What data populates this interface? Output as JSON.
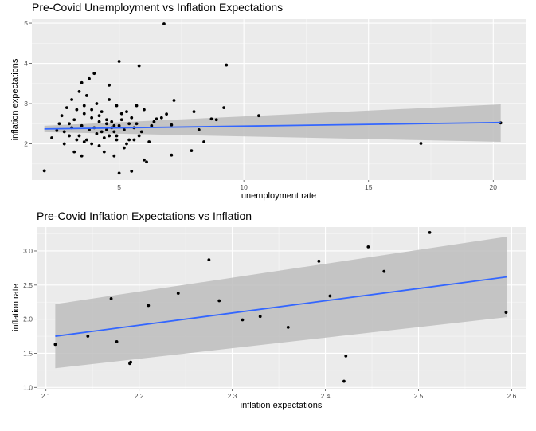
{
  "chart_data": [
    {
      "type": "scatter",
      "title": "Pre-Covid Unemployment vs Inflation Expectations",
      "xlabel": "unemployment rate",
      "ylabel": "inflation expectations",
      "xlim": [
        1.5,
        21.3
      ],
      "ylim": [
        1.1,
        5.1
      ],
      "xticks": [
        5,
        10,
        15,
        20
      ],
      "yticks": [
        2,
        3,
        4,
        5
      ],
      "grid": true,
      "background": "#ebebeb",
      "point_color": "#000000",
      "fit": {
        "method": "lm",
        "color": "#3366ff",
        "ci_color": "#bdbdbd",
        "x": [
          2.0,
          20.3
        ],
        "y": [
          2.37,
          2.53
        ],
        "ci_lower": [
          2.29,
          2.05
        ],
        "ci_upper": [
          2.45,
          2.98
        ]
      },
      "points": [
        [
          6.8,
          4.98
        ],
        [
          5.0,
          4.05
        ],
        [
          5.8,
          3.94
        ],
        [
          9.3,
          3.96
        ],
        [
          2.0,
          1.33
        ],
        [
          17.1,
          2.01
        ],
        [
          20.3,
          2.52
        ],
        [
          10.6,
          2.7
        ],
        [
          9.2,
          2.9
        ],
        [
          8.7,
          2.62
        ],
        [
          8.9,
          2.6
        ],
        [
          8.0,
          2.8
        ],
        [
          8.2,
          2.35
        ],
        [
          8.4,
          2.05
        ],
        [
          7.9,
          1.83
        ],
        [
          7.2,
          3.08
        ],
        [
          7.1,
          2.47
        ],
        [
          7.1,
          1.72
        ],
        [
          6.9,
          2.74
        ],
        [
          6.7,
          2.65
        ],
        [
          6.5,
          2.62
        ],
        [
          6.3,
          2.45
        ],
        [
          6.2,
          2.05
        ],
        [
          6.1,
          1.55
        ],
        [
          6.0,
          1.6
        ],
        [
          5.5,
          1.32
        ],
        [
          5.0,
          1.27
        ],
        [
          3.8,
          3.62
        ],
        [
          4.0,
          3.75
        ],
        [
          3.5,
          3.52
        ],
        [
          4.6,
          3.46
        ],
        [
          2.5,
          2.33
        ],
        [
          2.3,
          2.15
        ],
        [
          6.4,
          2.55
        ],
        [
          6.0,
          2.85
        ],
        [
          5.9,
          2.3
        ],
        [
          5.7,
          2.95
        ],
        [
          5.6,
          2.4
        ],
        [
          5.4,
          2.1
        ],
        [
          5.2,
          1.9
        ],
        [
          4.8,
          1.7
        ],
        [
          4.4,
          1.8
        ],
        [
          4.2,
          1.95
        ],
        [
          3.9,
          2.0
        ],
        [
          3.6,
          2.05
        ],
        [
          3.3,
          2.1
        ],
        [
          3.0,
          2.2
        ],
        [
          2.8,
          2.3
        ],
        [
          2.6,
          2.5
        ],
        [
          2.7,
          2.7
        ],
        [
          2.9,
          2.9
        ],
        [
          3.1,
          3.1
        ],
        [
          3.4,
          3.3
        ],
        [
          3.7,
          3.2
        ],
        [
          4.1,
          3.0
        ],
        [
          4.3,
          2.8
        ],
        [
          4.5,
          2.6
        ],
        [
          4.7,
          2.4
        ],
        [
          4.9,
          2.2
        ],
        [
          5.1,
          2.6
        ],
        [
          5.3,
          2.8
        ],
        [
          3.2,
          2.6
        ],
        [
          3.5,
          2.45
        ],
        [
          3.8,
          2.35
        ],
        [
          4.1,
          2.25
        ],
        [
          4.4,
          2.15
        ],
        [
          4.7,
          2.55
        ],
        [
          5.0,
          2.45
        ],
        [
          3.3,
          2.85
        ],
        [
          3.6,
          2.75
        ],
        [
          3.9,
          2.65
        ],
        [
          4.2,
          2.55
        ],
        [
          4.5,
          2.35
        ],
        [
          4.8,
          2.3
        ],
        [
          5.2,
          2.35
        ],
        [
          5.5,
          2.65
        ],
        [
          5.8,
          2.2
        ],
        [
          3.0,
          2.5
        ],
        [
          3.1,
          2.4
        ],
        [
          3.4,
          2.2
        ],
        [
          3.7,
          2.1
        ],
        [
          4.0,
          2.4
        ],
        [
          4.3,
          2.3
        ],
        [
          4.6,
          2.2
        ],
        [
          4.9,
          2.1
        ],
        [
          5.3,
          2.0
        ],
        [
          5.6,
          2.1
        ],
        [
          2.8,
          2.0
        ],
        [
          3.2,
          1.8
        ],
        [
          3.5,
          1.7
        ],
        [
          4.6,
          3.1
        ],
        [
          4.9,
          2.95
        ],
        [
          5.1,
          2.75
        ],
        [
          5.4,
          2.5
        ],
        [
          5.7,
          2.5
        ],
        [
          3.6,
          2.95
        ],
        [
          3.9,
          2.85
        ],
        [
          4.2,
          2.7
        ],
        [
          4.5,
          2.5
        ],
        [
          4.8,
          2.45
        ]
      ]
    },
    {
      "type": "scatter",
      "title": "Pre-Covid Inflation Expectations vs Inflation",
      "xlabel": "inflation expectations",
      "ylabel": "inflation rate",
      "xlim": [
        2.09,
        2.615
      ],
      "ylim": [
        0.98,
        3.35
      ],
      "xticks": [
        2.1,
        2.2,
        2.3,
        2.4,
        2.5,
        2.6
      ],
      "yticks": [
        1.0,
        1.5,
        2.0,
        2.5,
        3.0
      ],
      "grid": true,
      "background": "#ebebeb",
      "point_color": "#000000",
      "fit": {
        "method": "lm",
        "color": "#3366ff",
        "ci_color": "#bdbdbd",
        "x": [
          2.11,
          2.595
        ],
        "y": [
          1.75,
          2.62
        ],
        "ci_lower": [
          1.28,
          2.03
        ],
        "ci_upper": [
          2.22,
          3.21
        ]
      },
      "points": [
        [
          2.11,
          1.63
        ],
        [
          2.145,
          1.75
        ],
        [
          2.17,
          2.3
        ],
        [
          2.176,
          1.67
        ],
        [
          2.19,
          1.35
        ],
        [
          2.191,
          1.37
        ],
        [
          2.21,
          2.2
        ],
        [
          2.242,
          2.38
        ],
        [
          2.275,
          2.87
        ],
        [
          2.286,
          2.27
        ],
        [
          2.311,
          1.99
        ],
        [
          2.33,
          2.04
        ],
        [
          2.36,
          1.88
        ],
        [
          2.393,
          2.85
        ],
        [
          2.405,
          2.34
        ],
        [
          2.42,
          1.09
        ],
        [
          2.422,
          1.46
        ],
        [
          2.446,
          3.06
        ],
        [
          2.463,
          2.7
        ],
        [
          2.512,
          3.27
        ],
        [
          2.594,
          2.1
        ]
      ]
    }
  ]
}
